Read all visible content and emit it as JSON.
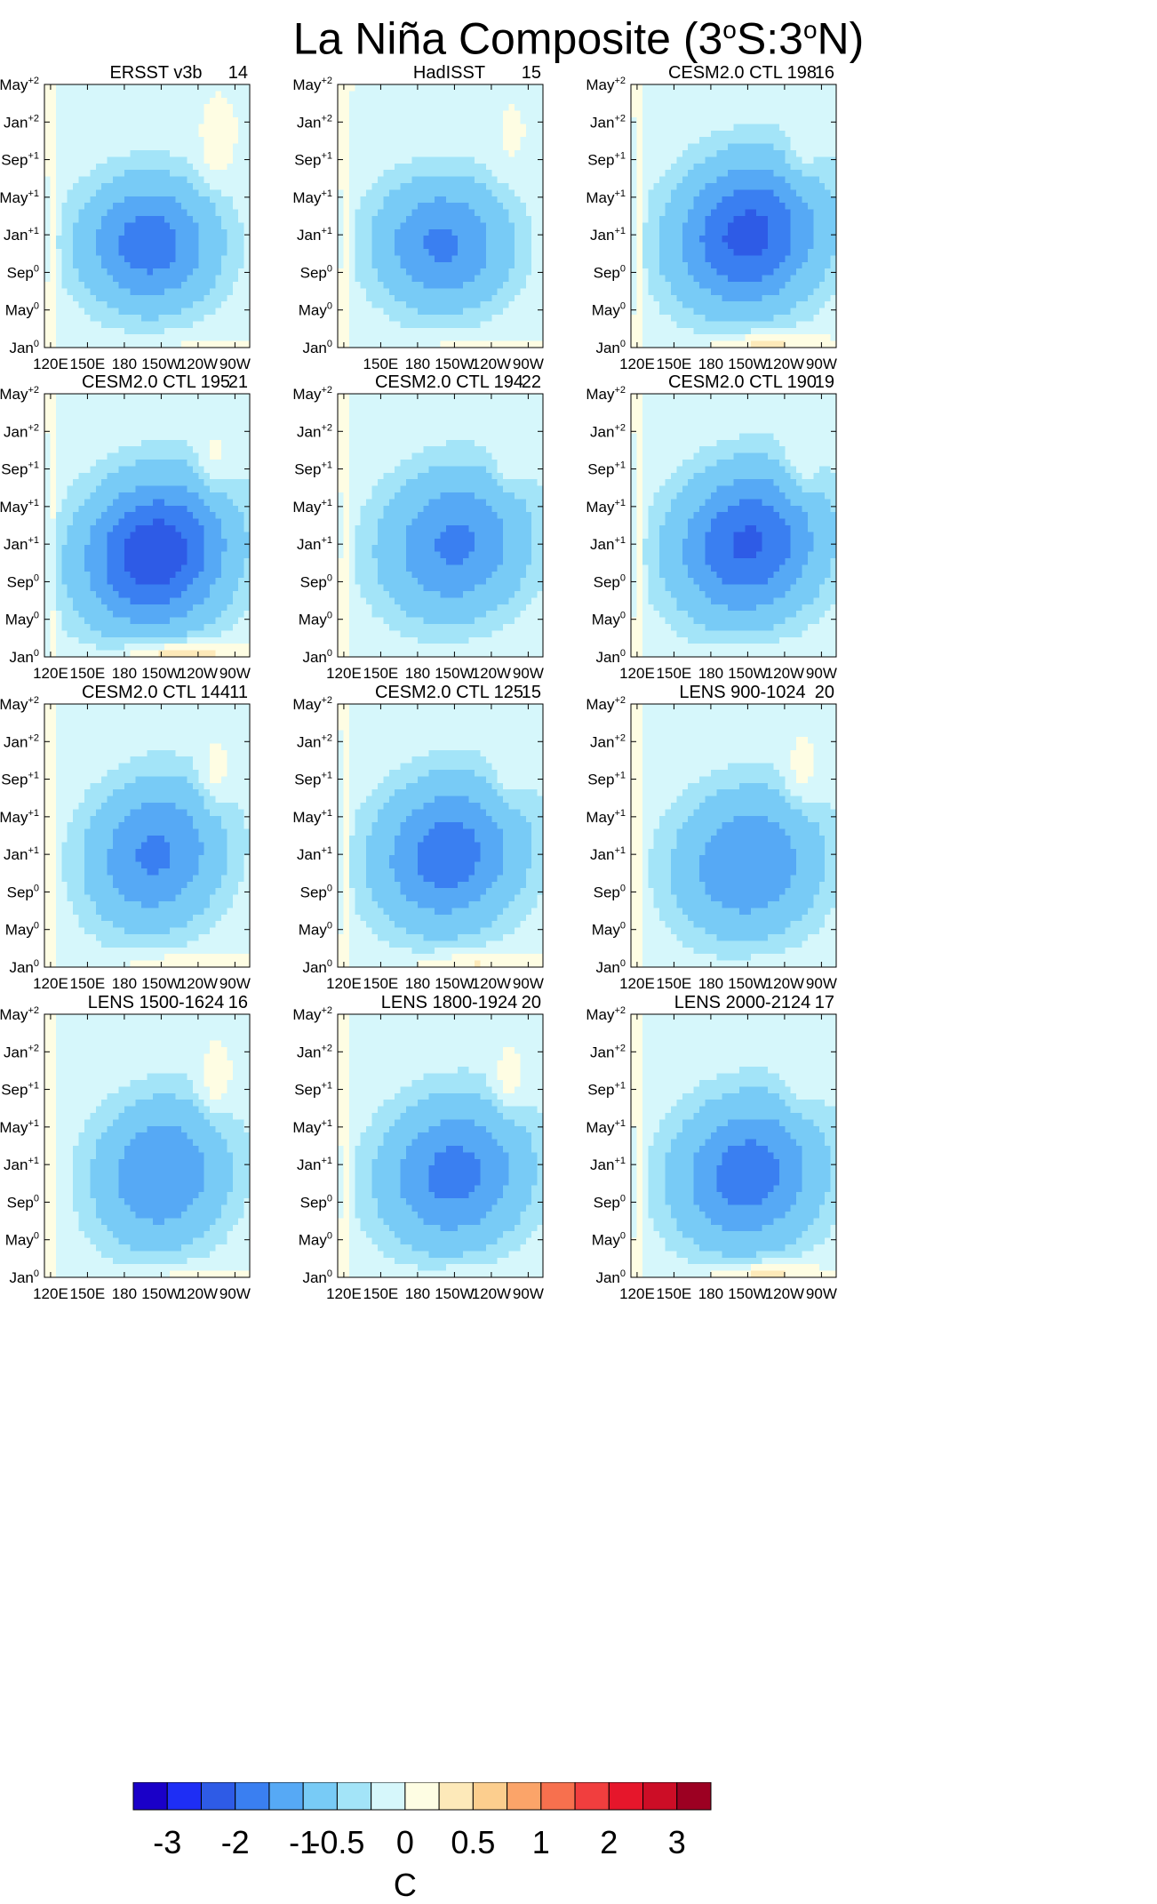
{
  "title": {
    "main": "La Niña Composite (3",
    "deg1": "o",
    "mid": "S:3",
    "deg2": "o",
    "end": "N)"
  },
  "chart_data": {
    "type": "heatmap",
    "title": "La Niña Composite (3oS:3oN)",
    "description_axes": "Hovmöller: x = longitude along equator, y = composite month",
    "x_ticks": [
      "120E",
      "150E",
      "180",
      "150W",
      "120W",
      "90W"
    ],
    "x_tick_values": [
      120,
      150,
      180,
      210,
      240,
      270
    ],
    "xlim": [
      115,
      282
    ],
    "y_ticks": [
      {
        "label": "Jan",
        "sup": "0",
        "month": 0
      },
      {
        "label": "May",
        "sup": "0",
        "month": 4
      },
      {
        "label": "Sep",
        "sup": "0",
        "month": 8
      },
      {
        "label": "Jan",
        "sup": "+1",
        "month": 12
      },
      {
        "label": "May",
        "sup": "+1",
        "month": 16
      },
      {
        "label": "Sep",
        "sup": "+1",
        "month": 20
      },
      {
        "label": "Jan",
        "sup": "+2",
        "month": 24
      },
      {
        "label": "May",
        "sup": "+2",
        "month": 28
      }
    ],
    "ylim": [
      0,
      28
    ],
    "panels": [
      {
        "name": "ERSST v3b",
        "count": "14",
        "min": -1.8,
        "center_lon": 200,
        "center_month": 11,
        "tilt": 0.0,
        "slon": 55,
        "smon": 7,
        "bwarm": 0.15,
        "ewarm": 0.2,
        "hide_first_xtick": false
      },
      {
        "name": "HadISST",
        "count": "15",
        "min": -1.6,
        "center_lon": 200,
        "center_month": 11,
        "tilt": 0.0,
        "slon": 55,
        "smon": 7,
        "bwarm": 0.2,
        "ewarm": 0.1,
        "hide_first_xtick": true
      },
      {
        "name": "CESM2.0 CTL 198",
        "count": "16",
        "min": -2.2,
        "center_lon": 210,
        "center_month": 12,
        "tilt": -0.07,
        "slon": 60,
        "smon": 8,
        "bwarm": 0.55,
        "ewarm": 0.3,
        "hide_first_xtick": false
      },
      {
        "name": "CESM2.0 CTL 195",
        "count": "21",
        "min": -2.4,
        "center_lon": 205,
        "center_month": 11,
        "tilt": -0.07,
        "slon": 60,
        "smon": 8,
        "bwarm": 0.75,
        "ewarm": 0.35,
        "hide_first_xtick": false
      },
      {
        "name": "CESM2.0 CTL 194",
        "count": "22",
        "min": -1.6,
        "center_lon": 210,
        "center_month": 12,
        "tilt": -0.07,
        "slon": 60,
        "smon": 8,
        "bwarm": 0.1,
        "ewarm": 0.25,
        "hide_first_xtick": false
      },
      {
        "name": "CESM2.0 CTL 190",
        "count": "19",
        "min": -2.1,
        "center_lon": 210,
        "center_month": 12,
        "tilt": -0.07,
        "slon": 60,
        "smon": 8,
        "bwarm": 0.2,
        "ewarm": 0.4,
        "hide_first_xtick": false
      },
      {
        "name": "CESM2.0 CTL 144",
        "count": "11",
        "min": -1.6,
        "center_lon": 205,
        "center_month": 12,
        "tilt": -0.07,
        "slon": 55,
        "smon": 8,
        "bwarm": 0.35,
        "ewarm": 0.35,
        "hide_first_xtick": false
      },
      {
        "name": "CESM2.0 CTL 125",
        "count": "15",
        "min": -1.8,
        "center_lon": 205,
        "center_month": 12,
        "tilt": -0.07,
        "slon": 60,
        "smon": 8,
        "bwarm": 0.45,
        "ewarm": 0.3,
        "hide_first_xtick": false
      },
      {
        "name": "LENS 900-1024",
        "count": "20",
        "min": -1.5,
        "center_lon": 210,
        "center_month": 11,
        "tilt": -0.05,
        "slon": 60,
        "smon": 8,
        "bwarm": 0.1,
        "ewarm": 0.3,
        "hide_first_xtick": false
      },
      {
        "name": "LENS 1500-1624",
        "count": "16",
        "min": -1.5,
        "center_lon": 210,
        "center_month": 11,
        "tilt": -0.05,
        "slon": 55,
        "smon": 8,
        "bwarm": 0.25,
        "ewarm": 0.35,
        "hide_first_xtick": false
      },
      {
        "name": "LENS 1800-1924",
        "count": "20",
        "min": -1.7,
        "center_lon": 210,
        "center_month": 11,
        "tilt": -0.06,
        "slon": 60,
        "smon": 8,
        "bwarm": 0.2,
        "ewarm": 0.35,
        "hide_first_xtick": false
      },
      {
        "name": "LENS 2000-2124",
        "count": "17",
        "min": -1.8,
        "center_lon": 210,
        "center_month": 11,
        "tilt": -0.06,
        "slon": 60,
        "smon": 8,
        "bwarm": 0.6,
        "ewarm": 0.25,
        "hide_first_xtick": false
      }
    ],
    "colorbar": {
      "colors": [
        "#1a00c8",
        "#1e2ef5",
        "#2e5be6",
        "#3a7ff1",
        "#56a9f5",
        "#78cbf6",
        "#a3e4f8",
        "#d6f7fb",
        "#fefde3",
        "#fde9b9",
        "#fcce8e",
        "#fba469",
        "#f7704e",
        "#f13e3e",
        "#e6162b",
        "#cc0d26",
        "#9c0022"
      ],
      "levels": [
        -3,
        -2.5,
        -2,
        -1.5,
        -1,
        -0.5,
        -0.25,
        0,
        0.25,
        0.5,
        0.75,
        1,
        1.5,
        2,
        2.5,
        3
      ],
      "labels": [
        "-3",
        "-2",
        "-1",
        "-0.5",
        "0",
        "0.5",
        "1",
        "2",
        "3"
      ],
      "label_levels": [
        -3,
        -2,
        -1,
        -0.5,
        0,
        0.5,
        1,
        2,
        3
      ],
      "unit": "C"
    }
  }
}
